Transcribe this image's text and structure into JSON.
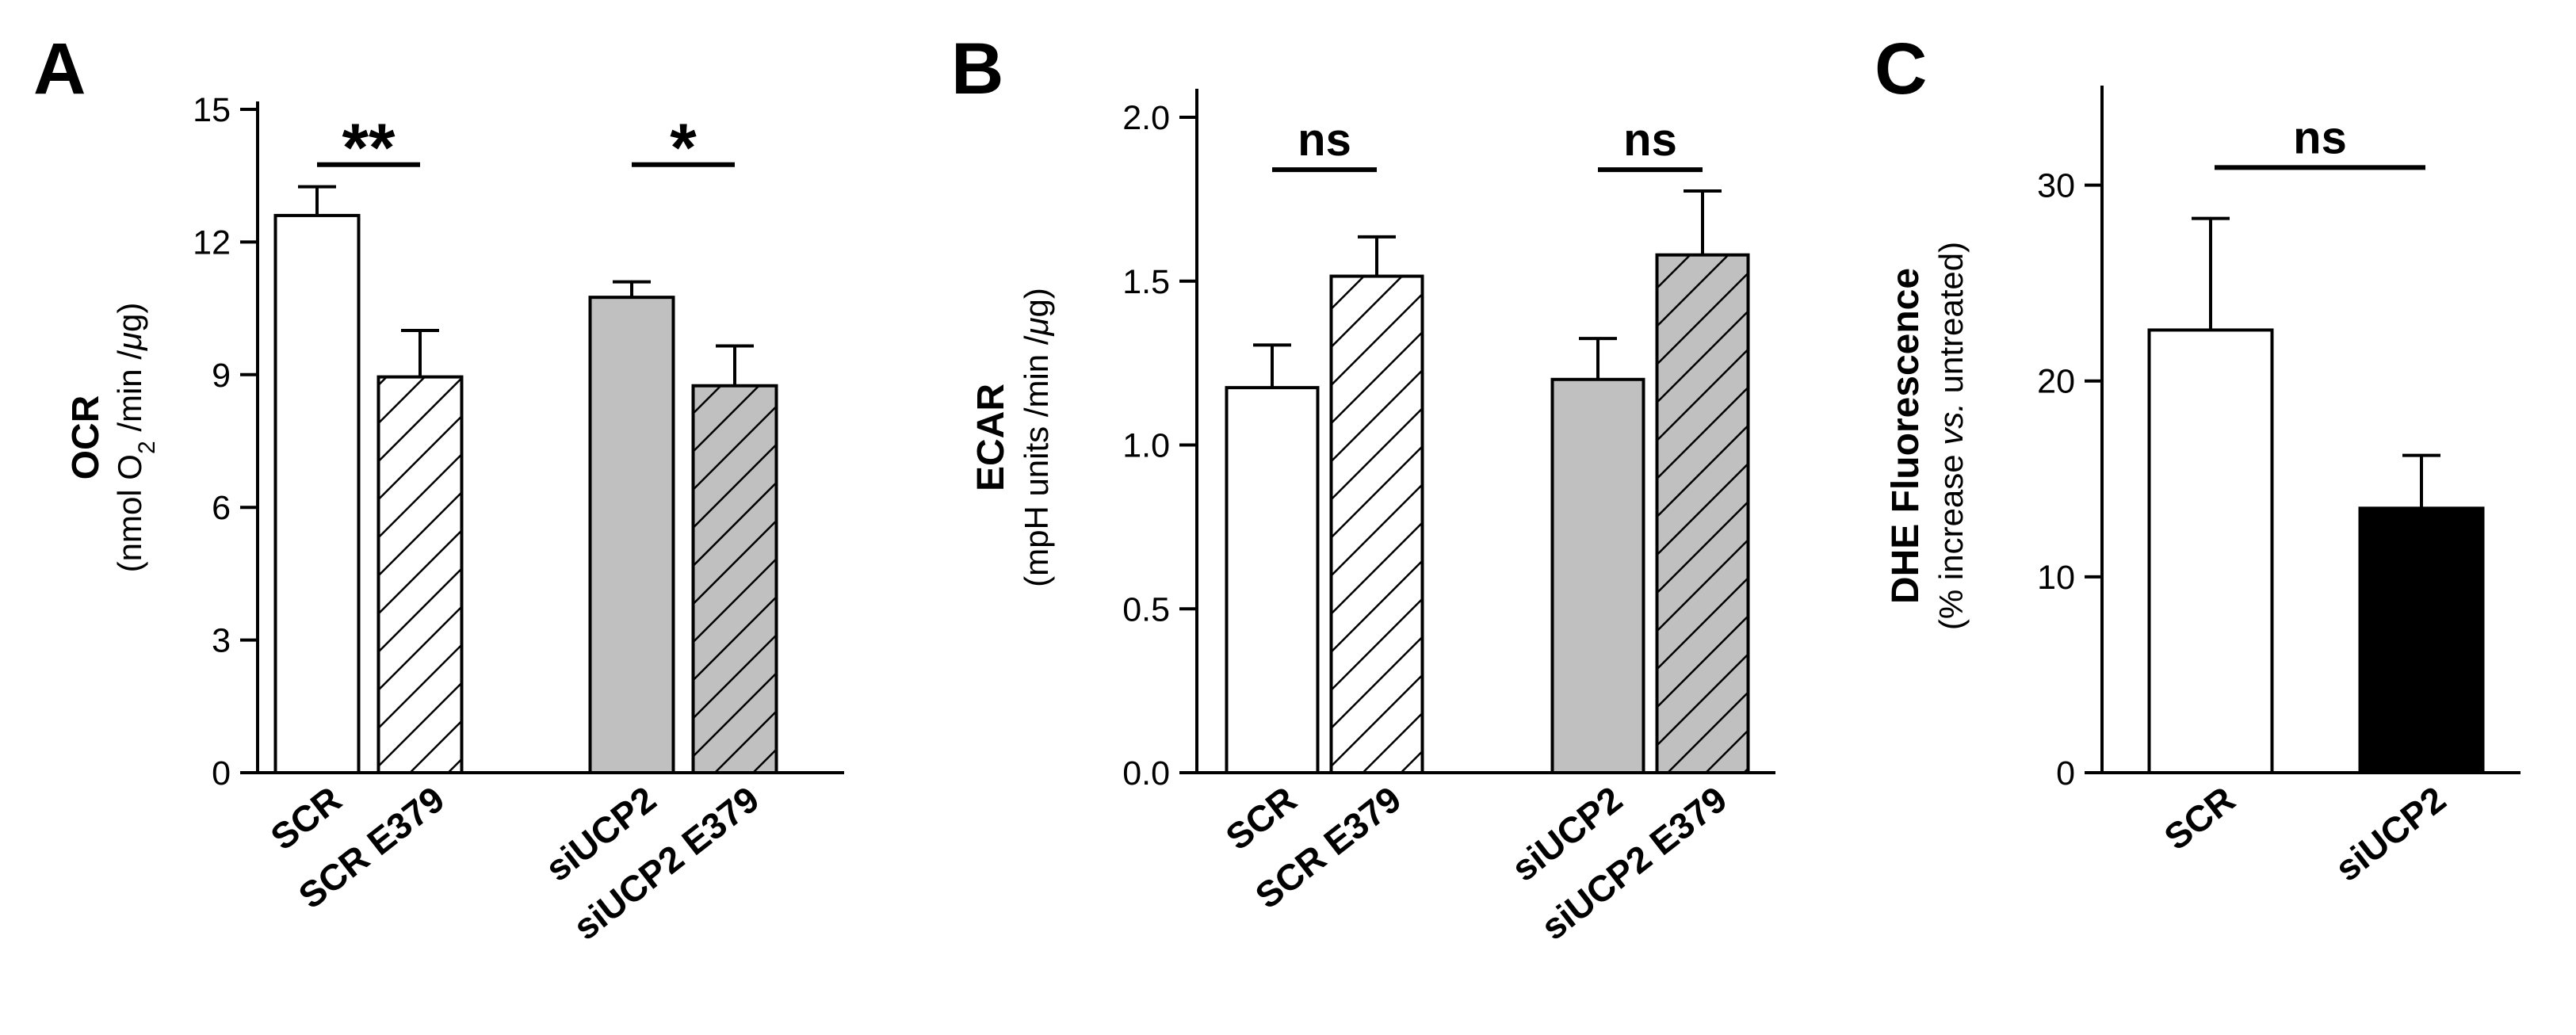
{
  "chart_data": [
    {
      "panel": "A",
      "type": "bar",
      "ylabel": "OCR",
      "ylabel_sub_parts": [
        "(nmol O",
        "2",
        " /min /",
        "μ",
        "g)"
      ],
      "yticks": [
        0,
        3,
        6,
        9,
        12,
        15
      ],
      "ylim": [
        0,
        15
      ],
      "bars": [
        {
          "label": "SCR",
          "value": 12.6,
          "error": 0.65,
          "fill": "#ffffff",
          "hatch": false
        },
        {
          "label": "SCR E379",
          "value": 8.95,
          "error": 1.05,
          "fill": "#ffffff",
          "hatch": true
        },
        {
          "label": "siUCP2",
          "value": 10.75,
          "error": 0.35,
          "fill": "#c0c0c0",
          "hatch": false
        },
        {
          "label": "siUCP2 E379",
          "value": 8.75,
          "error": 0.9,
          "fill": "#c0c0c0",
          "hatch": true
        }
      ],
      "significance": [
        {
          "bars": [
            0,
            1
          ],
          "label": "**",
          "y": 13.75
        },
        {
          "bars": [
            2,
            3
          ],
          "label": "*",
          "y": 13.75
        }
      ]
    },
    {
      "panel": "B",
      "type": "bar",
      "ylabel": "ECAR",
      "ylabel_sub_parts": [
        "(mpH units /min /",
        "μ",
        "g)"
      ],
      "yticks": [
        0.0,
        0.5,
        1.0,
        1.5,
        2.0
      ],
      "ytick_labels": [
        "0.0",
        "0.5",
        "1.0",
        "1.5",
        "2.0"
      ],
      "ylim": [
        0,
        2.0
      ],
      "bars": [
        {
          "label": "SCR",
          "value": 1.175,
          "error": 0.13,
          "fill": "#ffffff",
          "hatch": false
        },
        {
          "label": "SCR E379",
          "value": 1.515,
          "error": 0.12,
          "fill": "#ffffff",
          "hatch": true
        },
        {
          "label": "siUCP2",
          "value": 1.2,
          "error": 0.125,
          "fill": "#c0c0c0",
          "hatch": false
        },
        {
          "label": "siUCP2 E379",
          "value": 1.58,
          "error": 0.195,
          "fill": "#c0c0c0",
          "hatch": true
        }
      ],
      "significance": [
        {
          "bars": [
            0,
            1
          ],
          "label": "ns",
          "y": 1.84
        },
        {
          "bars": [
            2,
            3
          ],
          "label": "ns",
          "y": 1.84
        }
      ]
    },
    {
      "panel": "C",
      "type": "bar",
      "ylabel": "DHE Fluorescence",
      "ylabel_sub_parts": [
        "(% increase ",
        "vs.",
        " untreated)"
      ],
      "yticks": [
        0,
        10,
        20,
        30
      ],
      "ylim": [
        0,
        35
      ],
      "bars": [
        {
          "label": "SCR",
          "value": 22.6,
          "error": 5.7,
          "fill": "#ffffff",
          "hatch": false
        },
        {
          "label": "siUCP2",
          "value": 13.5,
          "error": 2.7,
          "fill": "#000000",
          "hatch": false
        }
      ],
      "significance": [
        {
          "bars": [
            0,
            1
          ],
          "label": "ns",
          "y": 30.9
        }
      ]
    }
  ]
}
